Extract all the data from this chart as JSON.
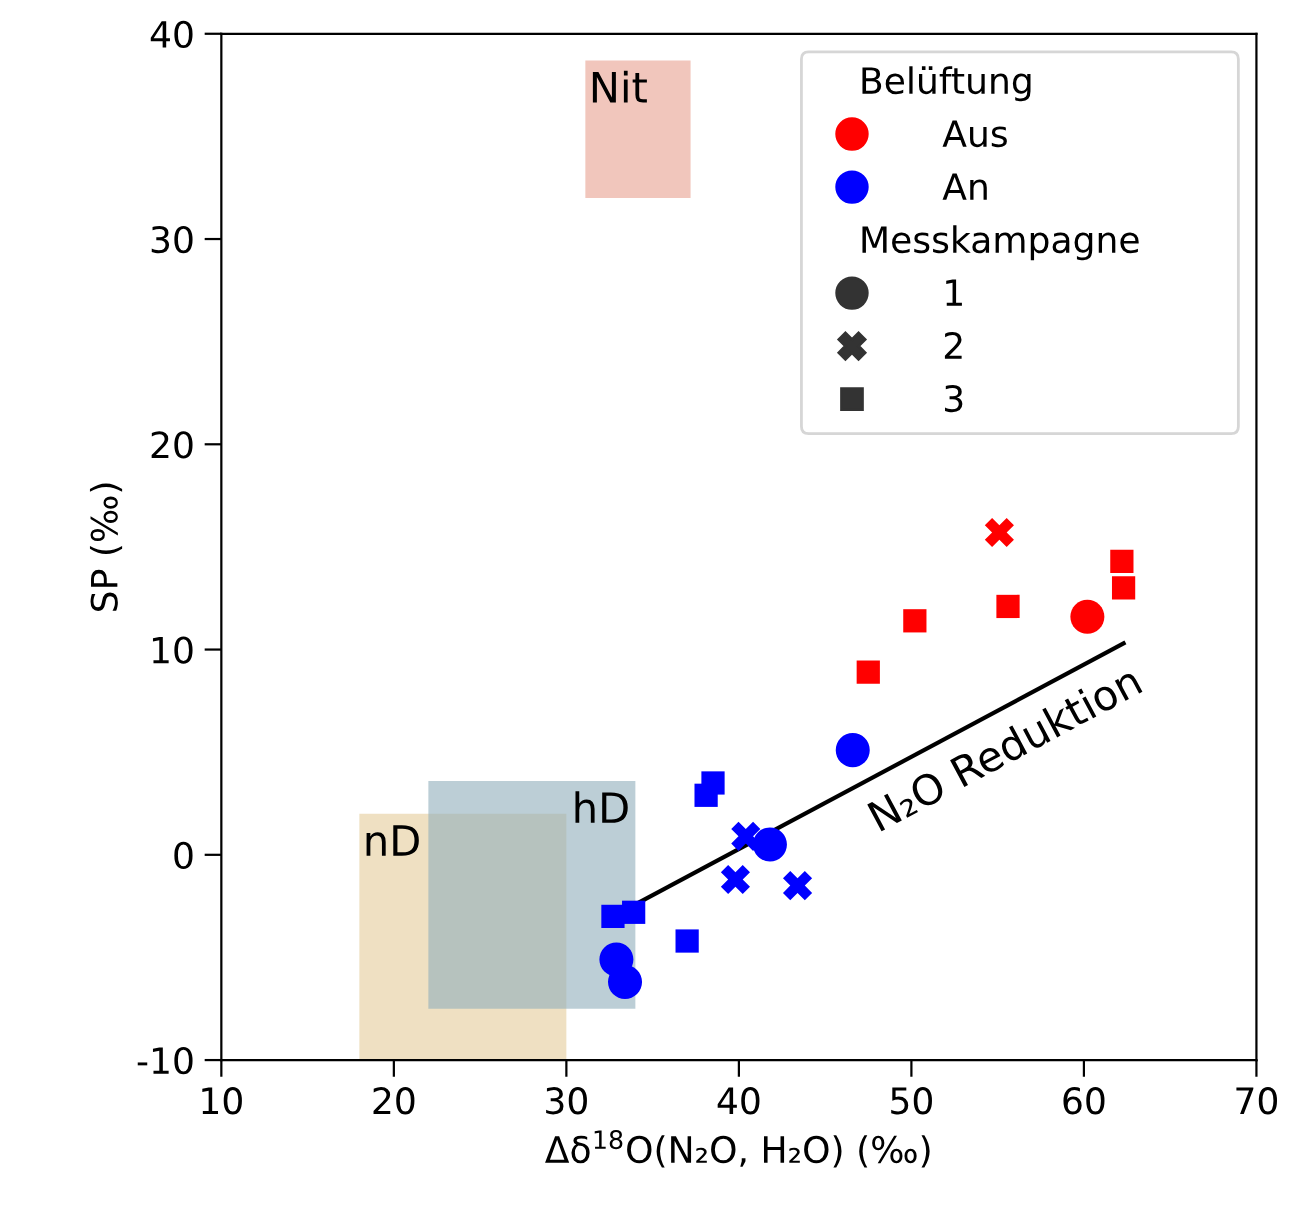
{
  "chart_data": {
    "type": "scatter",
    "xlabel": "Δδ$^{18}$O(N₂O, H₂O) (‰)",
    "ylabel": "SP (‰)",
    "xlim": [
      10,
      70
    ],
    "ylim": [
      -10,
      40
    ],
    "xticks": [
      10,
      20,
      30,
      40,
      50,
      60,
      70
    ],
    "yticks": [
      -10,
      0,
      10,
      20,
      30,
      40
    ],
    "grid": false,
    "legend": "top right",
    "legend_title": "Belüftung",
    "series": [
      {
        "type": "area",
        "name": "nD",
        "color": "#e5cc9a",
        "x": [
          18,
          30,
          30,
          18
        ],
        "values": [
          2,
          2,
          -10,
          -10
        ]
      },
      {
        "type": "area",
        "name": "hD",
        "color": "#8fadbb",
        "x": [
          22,
          34,
          34,
          22
        ],
        "values": [
          3.6,
          3.6,
          -7.5,
          -7.5
        ]
      },
      {
        "type": "area",
        "name": "Nit",
        "color": "#e8a090",
        "x": [
          31.1,
          37.2,
          37.2,
          31.1
        ],
        "values": [
          38.7,
          38.7,
          32.0,
          32.0
        ]
      },
      {
        "color": "#ff0000",
        "marker": "circle",
        "x": [
          60.2
        ],
        "values": [
          11.6
        ]
      },
      {
        "color": "#ff0000",
        "marker": "cross",
        "x": [
          55.1
        ],
        "values": [
          15.7
        ]
      },
      {
        "color": "#ff0000",
        "marker": "square",
        "x": [
          62.2,
          62.3,
          55.6,
          50.2,
          47.5
        ],
        "values": [
          14.3,
          13.0,
          12.1,
          11.4,
          8.9
        ]
      },
      {
        "color": "#0000ff",
        "marker": "circle",
        "x": [
          46.6,
          41.8,
          32.9,
          33.4
        ],
        "values": [
          5.1,
          0.5,
          -5.1,
          -6.2
        ]
      },
      {
        "color": "#0000ff",
        "marker": "cross",
        "x": [
          40.4,
          39.8,
          43.4
        ],
        "values": [
          0.9,
          -1.2,
          -1.5
        ]
      },
      {
        "color": "#0000ff",
        "marker": "square",
        "x": [
          32.7,
          33.9,
          37.0,
          38.1,
          38.5
        ],
        "values": [
          -3.0,
          -2.8,
          -4.2,
          2.9,
          3.5
        ]
      },
      {
        "type": "line",
        "name": "N₂O Reduktion",
        "color": "#000000",
        "x": [
          32.7,
          62.3
        ],
        "values": [
          -3.0,
          10.3
        ]
      },
      {
        "name": "Aus",
        "color": "#ff0000",
        "marker": "circle"
      },
      {
        "name": "An",
        "color": "#0000ff",
        "marker": "circle"
      },
      {
        "name": "1",
        "color": "#333333",
        "marker": "circle"
      },
      {
        "name": "2",
        "color": "#333333",
        "marker": "cross"
      },
      {
        "name": "3",
        "color": "#333333",
        "marker": "square"
      }
    ],
    "annotations": [
      "Messkampagne"
    ]
  }
}
